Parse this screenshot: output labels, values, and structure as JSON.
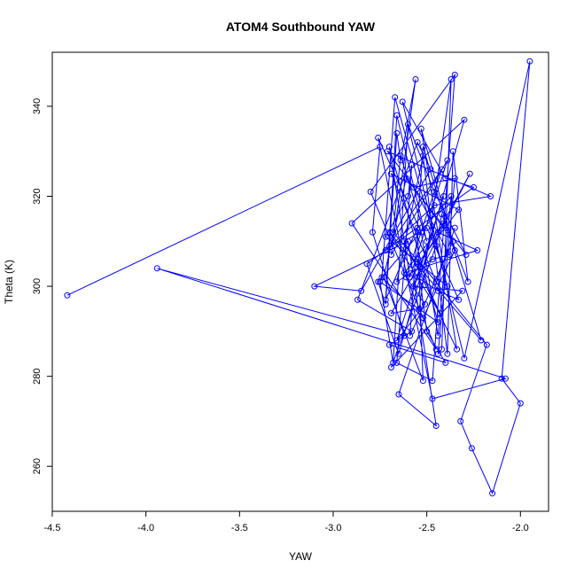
{
  "chart_data": {
    "type": "line",
    "title": "ATOM4 Southbound YAW",
    "xlabel": "YAW",
    "ylabel": "Theta (K)",
    "xlim": [
      -4.5,
      -1.85
    ],
    "ylim": [
      250,
      352
    ],
    "x_ticks": [
      -4.5,
      -4.0,
      -3.5,
      -3.0,
      -2.5,
      -2.0
    ],
    "x_tick_labels": [
      "-4.5",
      "-4.0",
      "-3.5",
      "-3.0",
      "-2.5",
      "-2.0"
    ],
    "y_ticks": [
      260,
      280,
      300,
      320,
      340
    ],
    "y_tick_labels": [
      "260",
      "280",
      "300",
      "320",
      "340"
    ],
    "grid": false,
    "series": [
      {
        "color": "#0000ff",
        "marker": "open-circle",
        "line": true,
        "x": [
          -4.42,
          -2.75,
          -2.79,
          -2.62,
          -3.94,
          -2.08,
          -2.47,
          -2.76,
          -2.53,
          -2.44,
          -2.37,
          -2.76,
          -2.72,
          -2.66,
          -2.64,
          -2.56,
          -2.69,
          -2.39,
          -2.59,
          -2.7,
          -2.44,
          -2.75,
          -2.68,
          -2.6,
          -2.46,
          -2.29,
          -2.61,
          -2.73,
          -2.52,
          -2.55,
          -2.72,
          -2.66,
          -2.5,
          -2.64,
          -2.68,
          -2.45,
          -2.69,
          -2.33,
          -2.55,
          -2.43,
          -2.7,
          -2.21,
          -2.52,
          -2.59,
          -2.36,
          -2.71,
          -2.16,
          -2.46,
          -2.72,
          -2.42,
          -2.61,
          -2.51,
          -2.66,
          -2.41,
          -2.57,
          -2.31,
          -2.69,
          -2.45,
          -2.42,
          -2.28,
          -2.36,
          -2.39,
          -2.52,
          -2.66,
          -2.47,
          -2.38,
          -2.57,
          -2.35,
          -2.44,
          -2.42,
          -2.37,
          -2.54,
          -2.69,
          -2.41,
          -2.62,
          -2.23,
          -2.44,
          -2.27,
          -2.55,
          -2.44,
          -2.33,
          -2.5,
          -2.62,
          -2.34,
          -2.53,
          -2.35,
          -2.52,
          -2.74,
          -2.67,
          -2.39,
          -2.72,
          -2.6,
          -2.58,
          -2.66,
          -2.47,
          -2.35,
          -2.8,
          -2.45,
          -2.9,
          -2.3,
          -2.65,
          -2.82,
          -2.25,
          -2.4,
          -2.63,
          -2.3,
          -1.95,
          -2.1,
          -2.0,
          -2.15,
          -2.26,
          -2.32,
          -2.18,
          -2.55,
          -2.5,
          -2.4,
          -2.7,
          -2.58,
          -2.87,
          -2.55,
          -2.48,
          -2.85,
          -3.1,
          -2.6,
          -2.45,
          -2.65,
          -2.35
        ],
        "y": [
          298.0,
          331.0,
          312.0,
          289.0,
          304.0,
          279.5,
          275.0,
          333.0,
          312.0,
          289.0,
          320.0,
          301.0,
          296.0,
          334.0,
          328.0,
          346.0,
          307.0,
          328.0,
          302.0,
          331.0,
          292.0,
          301.0,
          283.0,
          336.0,
          321.0,
          307.0,
          324.0,
          302.0,
          279.0,
          313.0,
          297.0,
          338.0,
          310.0,
          329.0,
          312.0,
          301.0,
          325.0,
          317.0,
          305.0,
          294.0,
          312.0,
          288.0,
          331.0,
          289.0,
          310.0,
          330.0,
          320.0,
          318.0,
          308.0,
          326.0,
          302.0,
          296.0,
          288.0,
          320.0,
          300.0,
          299.0,
          282.0,
          309.0,
          316.0,
          301.0,
          330.0,
          285.0,
          329.0,
          301.0,
          306.0,
          307.0,
          322.0,
          324.0,
          285.0,
          286.0,
          346.0,
          295.0,
          294.0,
          314.0,
          303.0,
          308.0,
          312.0,
          325.0,
          302.0,
          299.0,
          297.0,
          313.0,
          310.0,
          286.0,
          335.0,
          308.0,
          293.0,
          302.0,
          342.0,
          300.0,
          311.0,
          320.0,
          327.0,
          283.0,
          279.0,
          347.0,
          321.0,
          286.0,
          314.0,
          337.0,
          285.0,
          305.0,
          322.0,
          324.0,
          341.0,
          284.0,
          350.0,
          279.5,
          274.0,
          254.0,
          264.0,
          270.0,
          287.0,
          306.0,
          290.0,
          283.0,
          287.0,
          290.0,
          297.0,
          332.0,
          326.0,
          299.0,
          300.0,
          310.0,
          269.0,
          276.0,
          313.0
        ]
      }
    ]
  }
}
